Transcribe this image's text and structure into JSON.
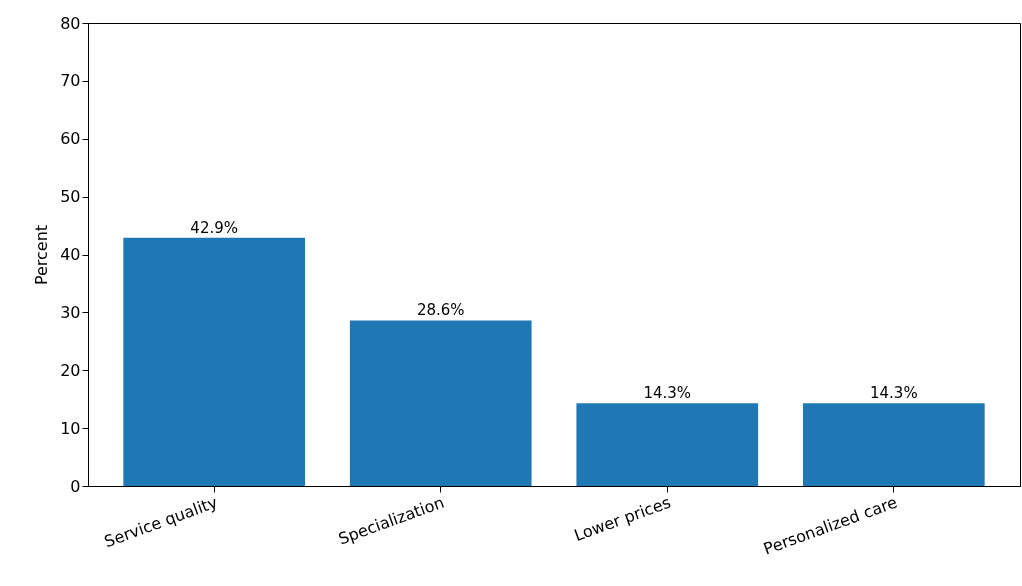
{
  "chart_data": {
    "type": "bar",
    "ylabel": "Percent",
    "categories": [
      "Service quality",
      "Specialization",
      "Lower prices",
      "Personalized care"
    ],
    "values": [
      42.9,
      28.6,
      14.3,
      14.3
    ],
    "value_labels": [
      "42.9%",
      "28.6%",
      "14.3%",
      "14.3%"
    ],
    "color": "#1f77b4",
    "ylim": [
      0,
      80
    ],
    "yticks": [
      0,
      10,
      20,
      30,
      40,
      50,
      60,
      70,
      80
    ]
  }
}
